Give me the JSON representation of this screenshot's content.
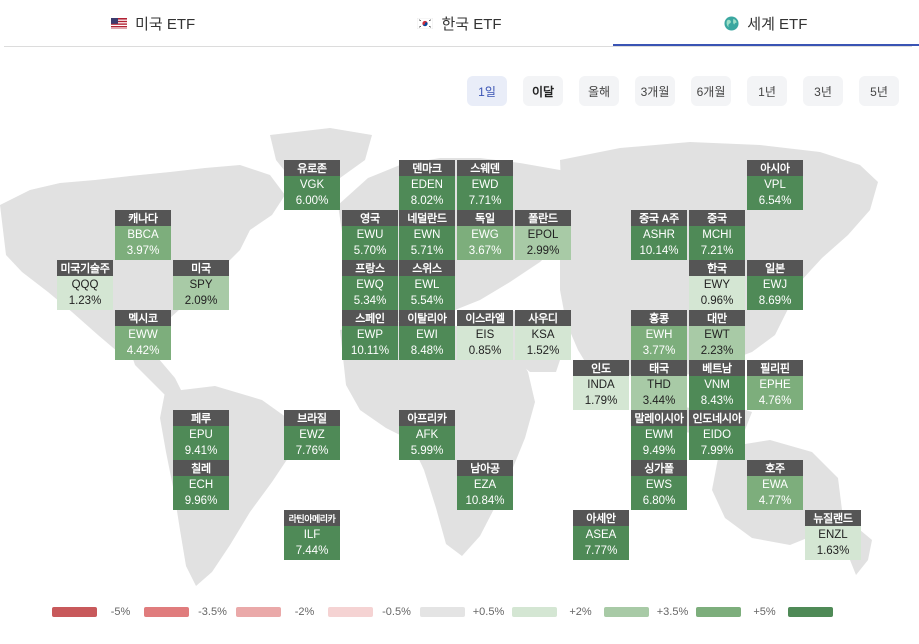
{
  "tabs": [
    {
      "label": "미국 ETF",
      "icon": "us-flag-icon",
      "active": false
    },
    {
      "label": "한국 ETF",
      "icon": "kr-flag-icon",
      "active": false
    },
    {
      "label": "세계 ETF",
      "icon": "globe-icon",
      "active": true
    }
  ],
  "accent": "#3a54b4",
  "periods": [
    {
      "label": "1일",
      "active": true
    },
    {
      "label": "이달",
      "bold": true
    },
    {
      "label": "올해"
    },
    {
      "label": "3개월"
    },
    {
      "label": "6개월"
    },
    {
      "label": "1년"
    },
    {
      "label": "3년"
    },
    {
      "label": "5년"
    }
  ],
  "tiles": [
    {
      "name": "유로존",
      "ticker": "VGK",
      "change": "6.00%",
      "value": 6.0
    },
    {
      "name": "덴마크",
      "ticker": "EDEN",
      "change": "8.02%",
      "value": 8.02
    },
    {
      "name": "스웨덴",
      "ticker": "EWD",
      "change": "7.71%",
      "value": 7.71
    },
    {
      "name": "아시아",
      "ticker": "VPL",
      "change": "6.54%",
      "value": 6.54
    },
    {
      "name": "캐나다",
      "ticker": "BBCA",
      "change": "3.97%",
      "value": 3.97
    },
    {
      "name": "영국",
      "ticker": "EWU",
      "change": "5.70%",
      "value": 5.7
    },
    {
      "name": "네덜란드",
      "ticker": "EWN",
      "change": "5.71%",
      "value": 5.71
    },
    {
      "name": "독일",
      "ticker": "EWG",
      "change": "3.67%",
      "value": 3.67
    },
    {
      "name": "폴란드",
      "ticker": "EPOL",
      "change": "2.99%",
      "value": 2.99
    },
    {
      "name": "중국 A주",
      "ticker": "ASHR",
      "change": "10.14%",
      "value": 10.14
    },
    {
      "name": "중국",
      "ticker": "MCHI",
      "change": "7.21%",
      "value": 7.21
    },
    {
      "name": "미국기술주",
      "ticker": "QQQ",
      "change": "1.23%",
      "value": 1.23
    },
    {
      "name": "미국",
      "ticker": "SPY",
      "change": "2.09%",
      "value": 2.09
    },
    {
      "name": "프랑스",
      "ticker": "EWQ",
      "change": "5.34%",
      "value": 5.34
    },
    {
      "name": "스위스",
      "ticker": "EWL",
      "change": "5.54%",
      "value": 5.54
    },
    {
      "name": "한국",
      "ticker": "EWY",
      "change": "0.96%",
      "value": 0.96
    },
    {
      "name": "일본",
      "ticker": "EWJ",
      "change": "8.69%",
      "value": 8.69
    },
    {
      "name": "멕시코",
      "ticker": "EWW",
      "change": "4.42%",
      "value": 4.42
    },
    {
      "name": "스페인",
      "ticker": "EWP",
      "change": "10.11%",
      "value": 10.11
    },
    {
      "name": "이탈리아",
      "ticker": "EWI",
      "change": "8.48%",
      "value": 8.48
    },
    {
      "name": "이스라엘",
      "ticker": "EIS",
      "change": "0.85%",
      "value": 0.85
    },
    {
      "name": "사우디",
      "ticker": "KSA",
      "change": "1.52%",
      "value": 1.52
    },
    {
      "name": "홍콩",
      "ticker": "EWH",
      "change": "3.77%",
      "value": 3.77
    },
    {
      "name": "대만",
      "ticker": "EWT",
      "change": "2.23%",
      "value": 2.23
    },
    {
      "name": "인도",
      "ticker": "INDA",
      "change": "1.79%",
      "value": 1.79
    },
    {
      "name": "태국",
      "ticker": "THD",
      "change": "3.44%",
      "value": 3.44
    },
    {
      "name": "베트남",
      "ticker": "VNM",
      "change": "8.43%",
      "value": 8.43
    },
    {
      "name": "필리핀",
      "ticker": "EPHE",
      "change": "4.76%",
      "value": 4.76
    },
    {
      "name": "페루",
      "ticker": "EPU",
      "change": "9.41%",
      "value": 9.41
    },
    {
      "name": "브라질",
      "ticker": "EWZ",
      "change": "7.76%",
      "value": 7.76
    },
    {
      "name": "아프리카",
      "ticker": "AFK",
      "change": "5.99%",
      "value": 5.99
    },
    {
      "name": "말레이시아",
      "ticker": "EWM",
      "change": "9.49%",
      "value": 9.49
    },
    {
      "name": "인도네시아",
      "ticker": "EIDO",
      "change": "7.99%",
      "value": 7.99
    },
    {
      "name": "칠레",
      "ticker": "ECH",
      "change": "9.96%",
      "value": 9.96
    },
    {
      "name": "남아공",
      "ticker": "EZA",
      "change": "10.84%",
      "value": 10.84
    },
    {
      "name": "싱가폴",
      "ticker": "EWS",
      "change": "6.80%",
      "value": 6.8
    },
    {
      "name": "호주",
      "ticker": "EWA",
      "change": "4.77%",
      "value": 4.77
    },
    {
      "name": "라틴아메리카",
      "ticker": "ILF",
      "change": "7.44%",
      "value": 7.44
    },
    {
      "name": "아세안",
      "ticker": "ASEA",
      "change": "7.77%",
      "value": 7.77
    },
    {
      "name": "뉴질랜드",
      "ticker": "ENZL",
      "change": "1.63%",
      "value": 1.63
    }
  ],
  "legend": [
    {
      "color": "#c8595b",
      "label": "-5%"
    },
    {
      "color": "#e07c7d",
      "label": "-3.5%"
    },
    {
      "color": "#eaa9a9",
      "label": "-2%"
    },
    {
      "color": "#f5d3d3",
      "label": "-0.5%"
    },
    {
      "color": "#e4e4e4",
      "label": "+0.5%"
    },
    {
      "color": "#d4e6d3",
      "label": "+2%"
    },
    {
      "color": "#a8caa6",
      "label": "+3.5%"
    },
    {
      "color": "#7dae7c",
      "label": "+5%"
    },
    {
      "color": "#4f8a57",
      "label": ""
    }
  ]
}
